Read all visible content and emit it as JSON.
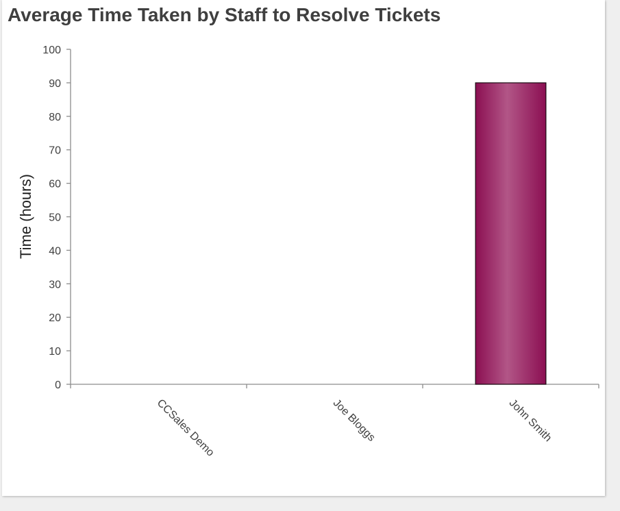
{
  "chart_data": {
    "type": "bar",
    "title": "Average Time Taken by Staff to Resolve Tickets",
    "xlabel": "",
    "ylabel": "Time (hours)",
    "categories": [
      "CCSales Demo",
      "Joe Bloggs",
      "John Smith"
    ],
    "values": [
      0,
      0,
      90
    ],
    "ylim": [
      0,
      100
    ],
    "yticks": [
      0,
      10,
      20,
      30,
      40,
      50,
      60,
      70,
      80,
      90,
      100
    ],
    "grid": false,
    "legend": "none",
    "bar_color": "#8b0f52",
    "bar_highlight": "#b25687"
  }
}
